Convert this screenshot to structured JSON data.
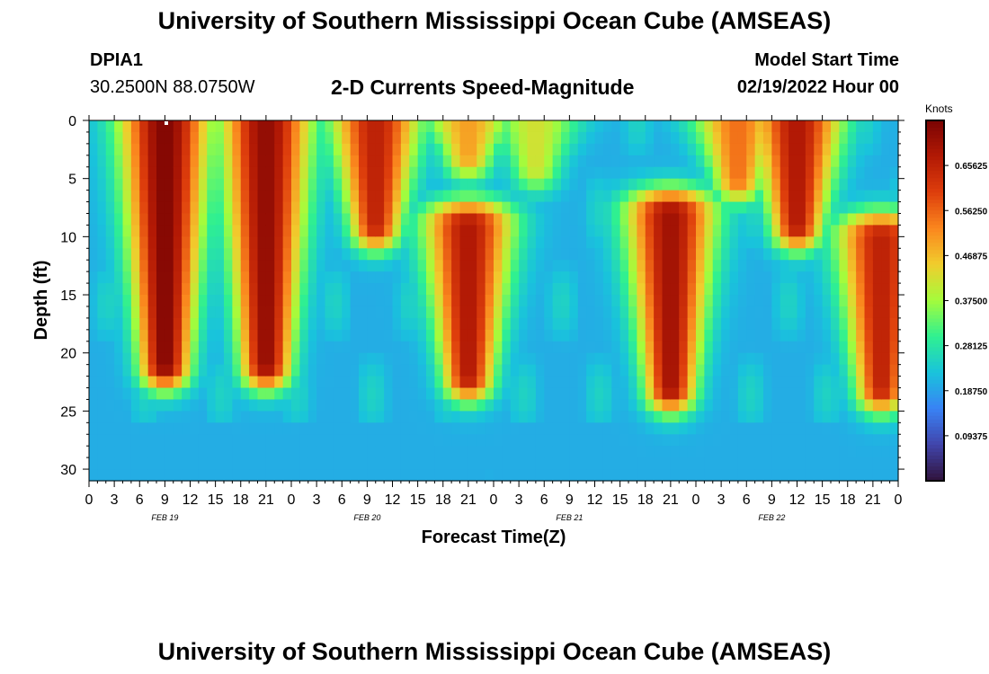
{
  "header": {
    "title": "University of Southern Mississippi Ocean Cube (AMSEAS)",
    "station_id": "DPIA1",
    "station_coords": "30.2500N  88.0750W",
    "start_label": "Model Start Time",
    "start_value": "02/19/2022 Hour 00"
  },
  "footer": {
    "title": "University of Southern Mississippi Ocean Cube (AMSEAS)"
  },
  "colors": {
    "background": "#ffffff",
    "axis": "#000000",
    "marker": "#ffffff"
  },
  "chart_data": {
    "type": "heatmap",
    "title": "2-D Currents Speed-Magnitude",
    "xlabel": "Forecast Time(Z)",
    "ylabel": "Depth (ft)",
    "x_tick_labels": [
      "0",
      "3",
      "6",
      "9",
      "12",
      "15",
      "18",
      "21",
      "0",
      "3",
      "6",
      "9",
      "12",
      "15",
      "18",
      "21",
      "0",
      "3",
      "6",
      "9",
      "12",
      "15",
      "18",
      "21",
      "0",
      "3",
      "6",
      "9",
      "12",
      "15",
      "18",
      "21",
      "0"
    ],
    "x_range_hours": [
      0,
      96
    ],
    "y_ticks": [
      "0",
      "5",
      "10",
      "15",
      "20",
      "25",
      "30"
    ],
    "y_range_ft": [
      0,
      31
    ],
    "date_labels": [
      {
        "text": "FEB 19",
        "hour": 9
      },
      {
        "text": "FEB 20",
        "hour": 33
      },
      {
        "text": "FEB 21",
        "hour": 57
      },
      {
        "text": "FEB 22",
        "hour": 81
      }
    ],
    "colorbar": {
      "label": "Knots",
      "range": [
        0,
        0.75
      ],
      "ticks": [
        "0.09375",
        "0.18750",
        "0.28125",
        "0.37500",
        "0.46875",
        "0.56250",
        "0.65625"
      ]
    },
    "high_speed_cores": [
      {
        "hour": 9,
        "depth_top": 0,
        "depth_bottom": 21,
        "speed": 0.74
      },
      {
        "hour": 21,
        "depth_top": 0,
        "depth_bottom": 21,
        "speed": 0.72
      },
      {
        "hour": 34,
        "depth_top": 0,
        "depth_bottom": 9,
        "speed": 0.66
      },
      {
        "hour": 45,
        "depth_top": 0,
        "depth_bottom": 3,
        "speed": 0.5
      },
      {
        "hour": 53,
        "depth_top": 0,
        "depth_bottom": 4,
        "speed": 0.42
      },
      {
        "hour": 45,
        "depth_top": 9,
        "depth_bottom": 22,
        "speed": 0.68
      },
      {
        "hour": 69,
        "depth_top": 8,
        "depth_bottom": 23,
        "speed": 0.7
      },
      {
        "hour": 77,
        "depth_top": 0,
        "depth_bottom": 5,
        "speed": 0.55
      },
      {
        "hour": 84,
        "depth_top": 0,
        "depth_bottom": 9,
        "speed": 0.68
      },
      {
        "hour": 94,
        "depth_top": 10,
        "depth_bottom": 23,
        "speed": 0.66
      }
    ]
  }
}
